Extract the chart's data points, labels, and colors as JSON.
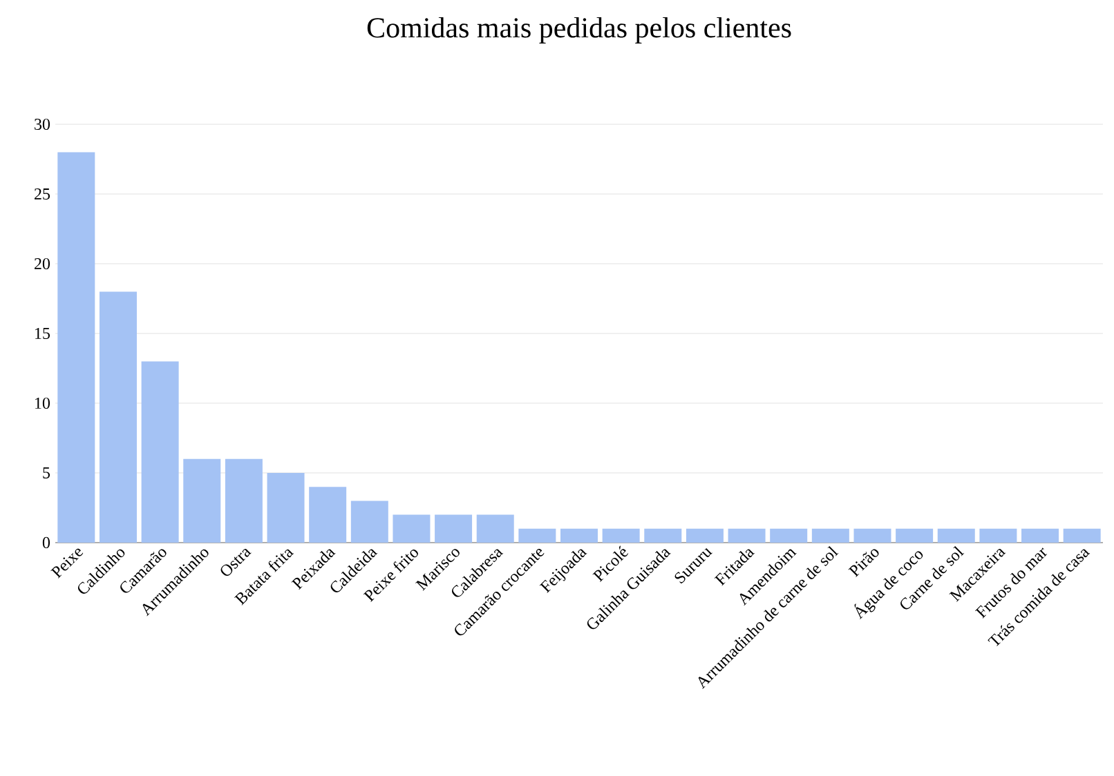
{
  "chart_data": {
    "type": "bar",
    "title": "Comidas mais pedidas pelos clientes",
    "categories": [
      "Peixe",
      "Caldinho",
      "Camarão",
      "Arrumadinho",
      "Ostra",
      "Batata frita",
      "Peixada",
      "Caldeida",
      "Peixe frito",
      "Marisco",
      "Calabresa",
      "Camarão crocante",
      "Feijoada",
      "Picolé",
      "Galinha Guisada",
      "Sururu",
      "Fritada",
      "Amendoim",
      "Arrumadinho de carne de sol",
      "Pirão",
      "Água de coco",
      "Carne de sol",
      "Macaxeira",
      "Frutos do mar",
      "Trás comida de casa"
    ],
    "values": [
      28,
      18,
      13,
      6,
      6,
      5,
      4,
      3,
      2,
      2,
      2,
      1,
      1,
      1,
      1,
      1,
      1,
      1,
      1,
      1,
      1,
      1,
      1,
      1,
      1
    ],
    "color": "#a4c2f4",
    "ylim": [
      0,
      30
    ],
    "yticks": [
      0,
      5,
      10,
      15,
      20,
      25,
      30
    ],
    "grid": "y"
  }
}
